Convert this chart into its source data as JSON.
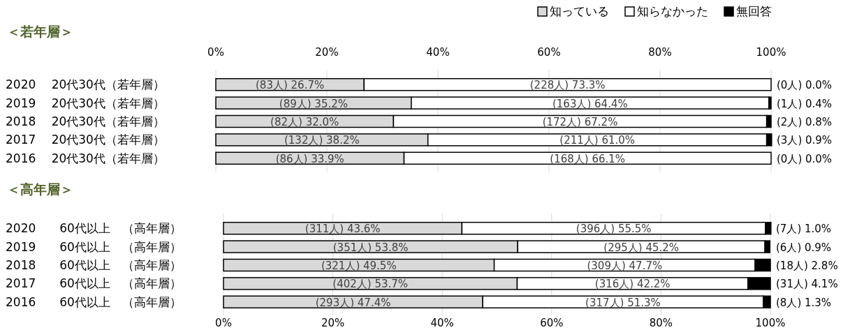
{
  "chart_data": [
    {
      "type": "bar",
      "orientation": "horizontal",
      "stacked": true,
      "title": "＜若年層＞",
      "categories": [
        "2020　 20代30代（若年層）",
        "2019　 20代30代（若年層）",
        "2018　 20代30代（若年層）",
        "2017　 20代30代（若年層）",
        "2016　 20代30代（若年層）"
      ],
      "series": [
        {
          "name": "知っている",
          "color": "#d9d9d9",
          "values": [
            26.7,
            35.2,
            32.0,
            38.2,
            33.9
          ],
          "value_labels": [
            "(83人) 26.7%",
            "(89人) 35.2%",
            "(82人) 32.0%",
            "(132人) 38.2%",
            "(86人) 33.9%"
          ]
        },
        {
          "name": "知らなかった",
          "color": "#ffffff",
          "values": [
            73.3,
            64.4,
            67.2,
            61.0,
            66.1
          ],
          "value_labels": [
            "(228人) 73.3%",
            "(163人) 64.4%",
            "(172人) 67.2%",
            "(211人) 61.0%",
            "(168人) 66.1%"
          ]
        },
        {
          "name": "無回答",
          "color": "#000000",
          "values": [
            0.0,
            0.4,
            0.8,
            0.9,
            0.0
          ],
          "value_labels": [
            "(0人) 0.0%",
            "(1人) 0.4%",
            "(2人) 0.8%",
            "(3人) 0.9%",
            "(0人) 0.0%"
          ]
        }
      ],
      "xlim": [
        0,
        100
      ],
      "xticks": [
        {
          "value": 0,
          "label": "0%"
        },
        {
          "value": 20,
          "label": "20%"
        },
        {
          "value": 40,
          "label": "40%"
        },
        {
          "value": 60,
          "label": "60%"
        },
        {
          "value": 80,
          "label": "80%"
        },
        {
          "value": 100,
          "label": "100%"
        }
      ],
      "grid": "x",
      "legend": "top right"
    },
    {
      "type": "bar",
      "orientation": "horizontal",
      "stacked": true,
      "title": "＜高年層＞",
      "categories": [
        "2020　　60代以上　（高年層）",
        "2019　　60代以上　（高年層）",
        "2018　　60代以上　（高年層）",
        "2017　　60代以上　（高年層）",
        "2016　　60代以上　（高年層）"
      ],
      "series": [
        {
          "color": "#d9d9d9",
          "values": [
            43.6,
            53.8,
            49.5,
            53.7,
            47.4
          ],
          "value_labels": [
            "(311人) 43.6%",
            "(351人) 53.8%",
            "(321人) 49.5%",
            "(402人) 53.7%",
            "(293人) 47.4%"
          ]
        },
        {
          "color": "#ffffff",
          "values": [
            55.5,
            45.2,
            47.7,
            42.2,
            51.3
          ],
          "value_labels": [
            "(396人) 55.5%",
            "(295人) 45.2%",
            "(309人) 47.7%",
            "(316人) 42.2%",
            "(317人) 51.3%"
          ]
        },
        {
          "color": "#000000",
          "values": [
            1.0,
            0.9,
            2.8,
            4.1,
            1.3
          ],
          "value_labels": [
            "(7人) 1.0%",
            "(6人) 0.9%",
            "(18人) 2.8%",
            "(31人) 4.1%",
            "(8人) 1.3%"
          ]
        }
      ],
      "xlim": [
        0,
        100
      ],
      "xticks": [
        {
          "value": 0,
          "label": "0%"
        },
        {
          "value": 20,
          "label": "20%"
        },
        {
          "value": 40,
          "label": "40%"
        },
        {
          "value": 60,
          "label": "60%"
        },
        {
          "value": 80,
          "label": "80%"
        },
        {
          "value": 100,
          "label": "100%"
        }
      ],
      "grid": "x",
      "legend": false
    }
  ]
}
